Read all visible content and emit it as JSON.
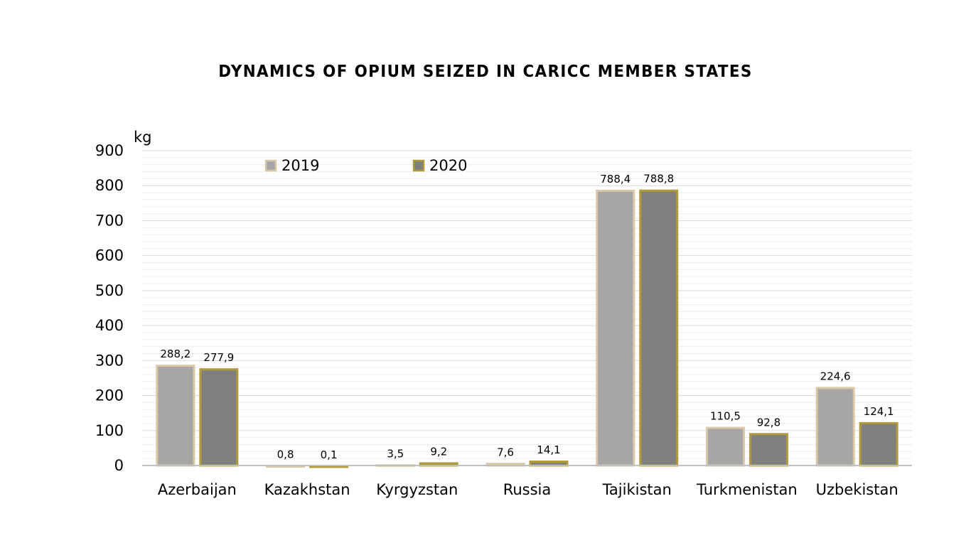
{
  "chart_data": {
    "type": "bar",
    "title": "DYNAMICS OF OPIUM SEIZED IN CARICC MEMBER STATES",
    "ylabel": "kg",
    "xlabel": "",
    "ylim": [
      0,
      900
    ],
    "yticks": [
      "0",
      "100",
      "200",
      "300",
      "400",
      "500",
      "600",
      "700",
      "800",
      "900"
    ],
    "grid": true,
    "legend_position": "top-left",
    "categories": [
      "Azerbaijan",
      "Kazakhstan",
      "Kyrgyzstan",
      "Russia",
      "Tajikistan",
      "Turkmenistan",
      "Uzbekistan"
    ],
    "series": [
      {
        "name": "2019",
        "values": [
          288.2,
          0.8,
          3.5,
          7.6,
          788.4,
          110.5,
          224.6
        ],
        "labels": [
          "288,2",
          "0,8",
          "3,5",
          "7,6",
          "788,4",
          "110,5",
          "224,6"
        ],
        "fill": "#a6a6a6",
        "stroke": "#d9c8a8"
      },
      {
        "name": "2020",
        "values": [
          277.9,
          0.1,
          9.2,
          14.1,
          788.8,
          92.8,
          124.1
        ],
        "labels": [
          "277,9",
          "0,1",
          "9,2",
          "14,1",
          "788,8",
          "92,8",
          "124,1"
        ],
        "fill": "#808080",
        "stroke": "#b09a3a"
      }
    ]
  }
}
